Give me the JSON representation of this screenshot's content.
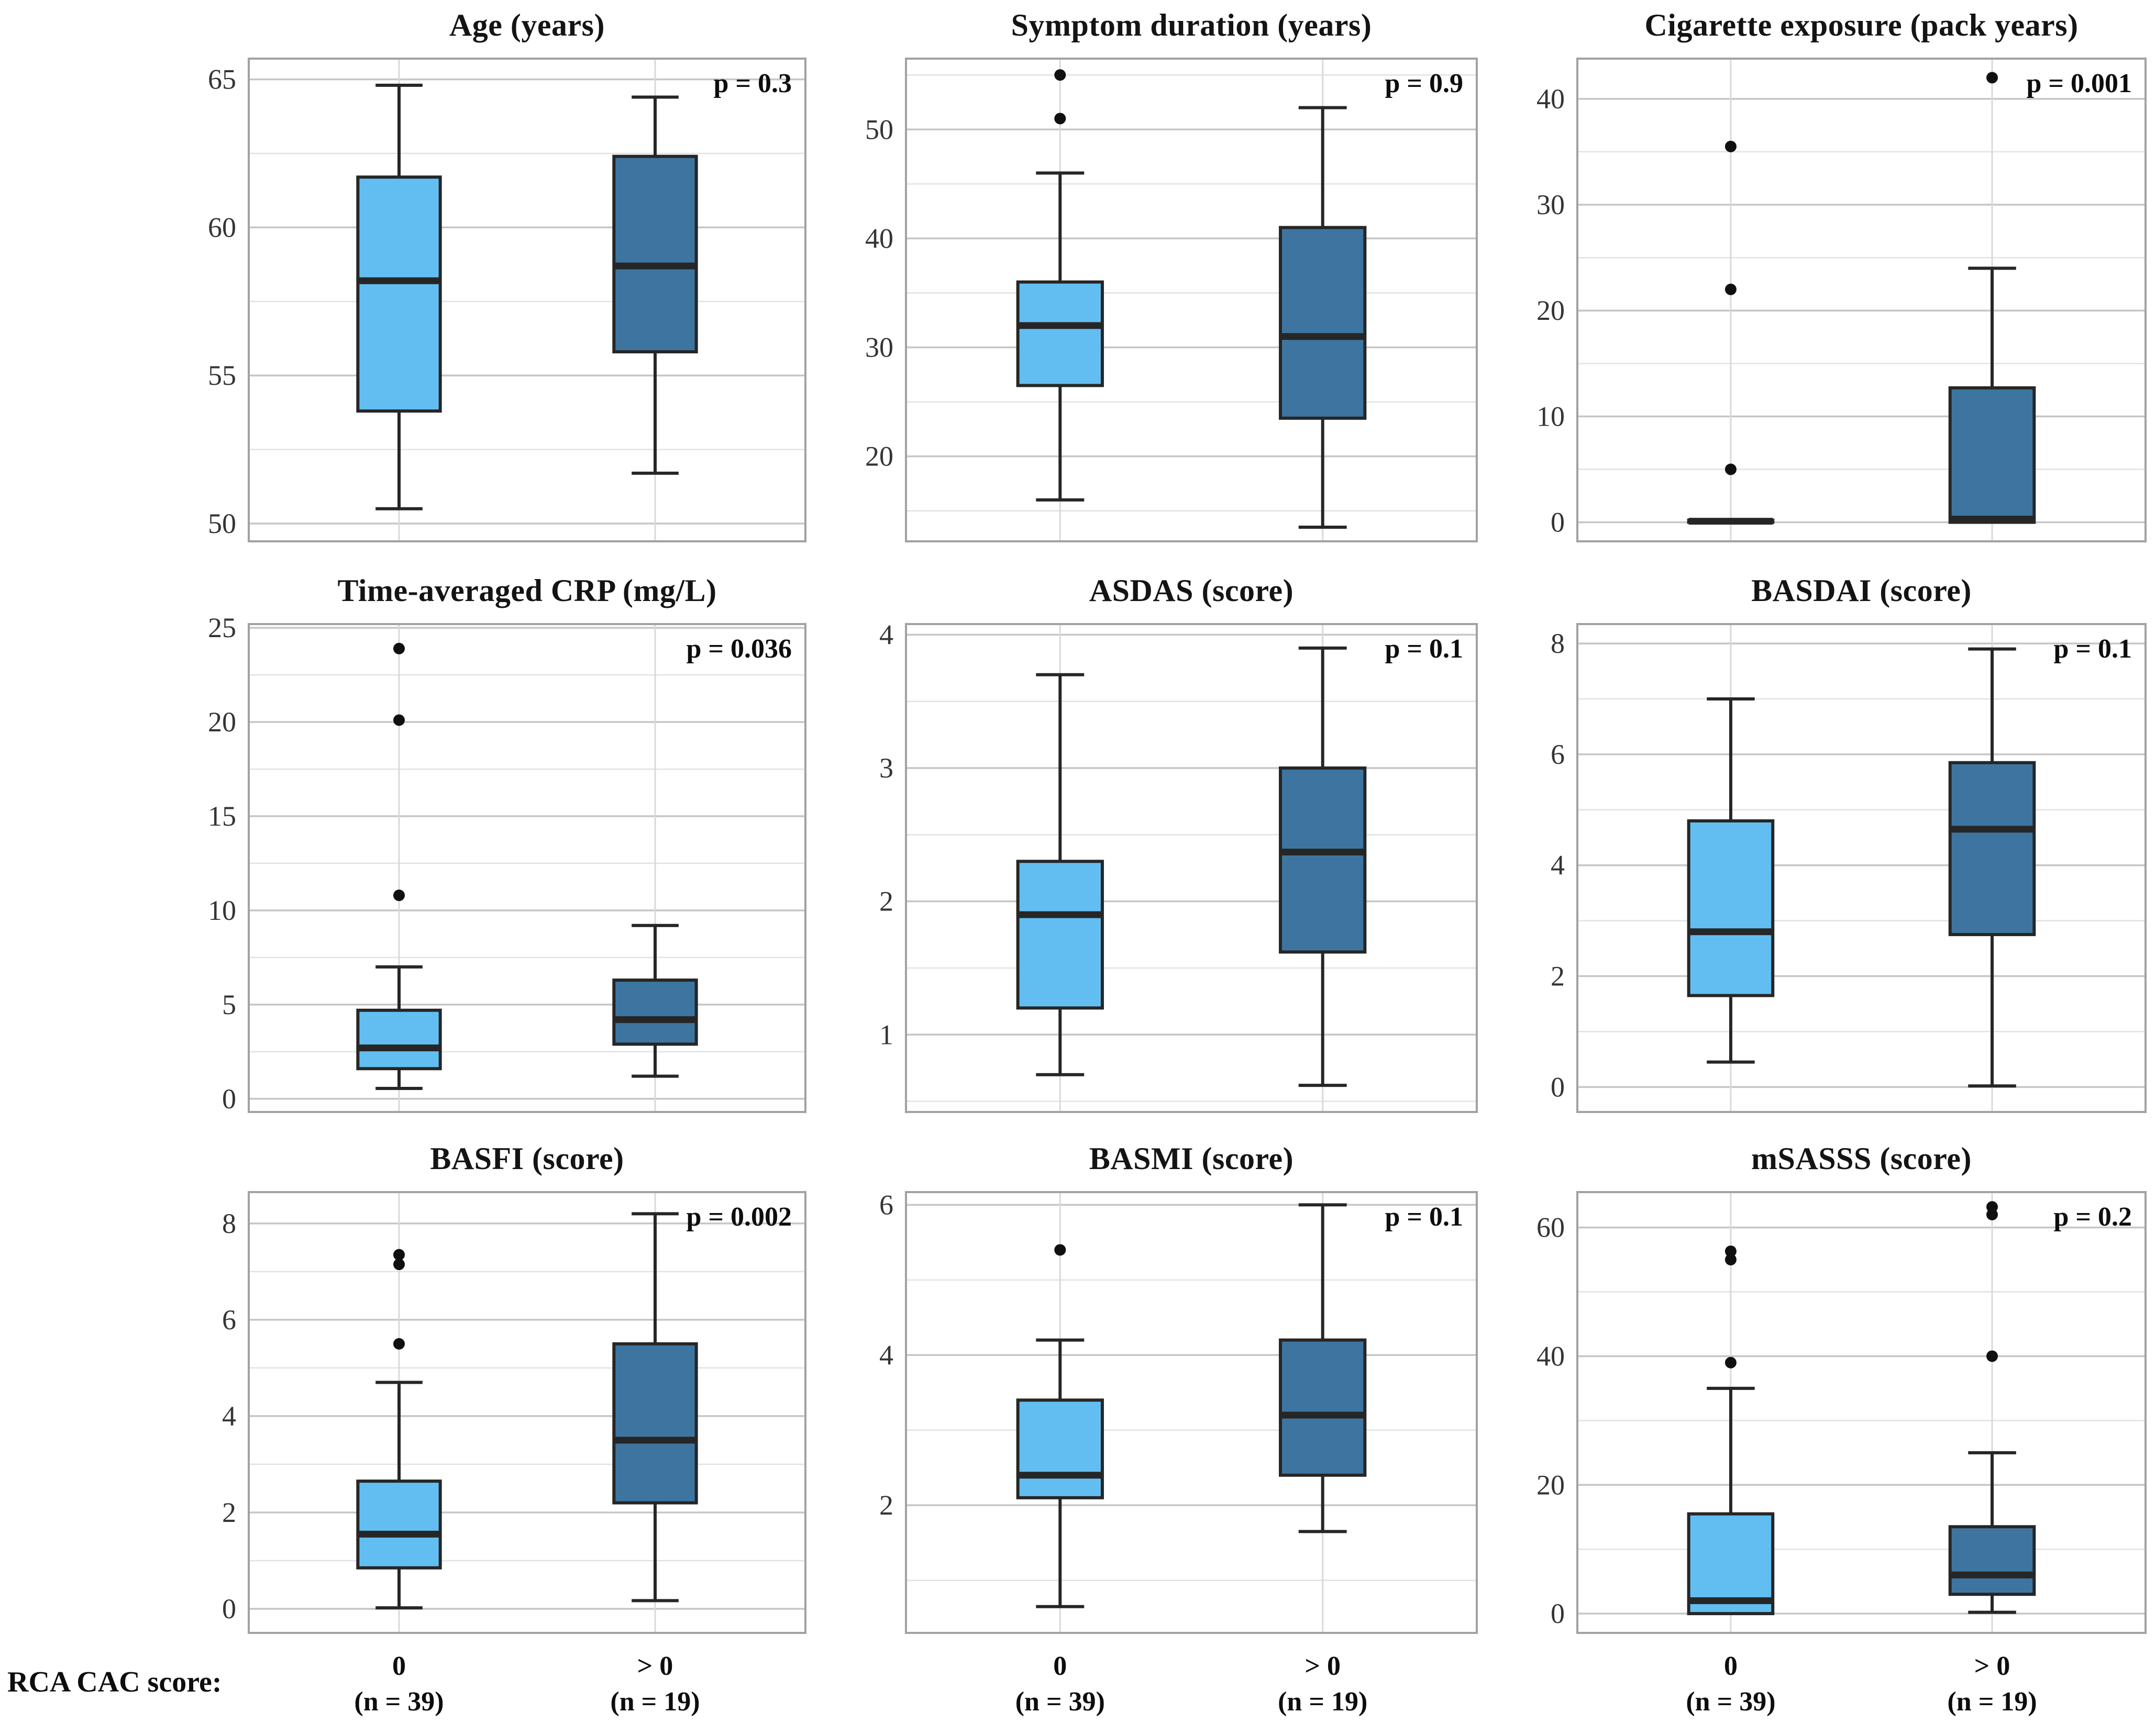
{
  "figure": {
    "x_axis_label": "RCA CAC score:",
    "groups": [
      {
        "label_line1": "0",
        "label_line2": "(n = 39)",
        "color": "#62BEF1"
      },
      {
        "label_line1": "> 0",
        "label_line2": "(n = 19)",
        "color": "#3D75A0"
      }
    ],
    "box_stroke_color": "#262626",
    "gridline_major_color": "#c6c6c6",
    "gridline_minor_color": "#e2e2e2",
    "panel_border_color": "#a2a2a2"
  },
  "chart_data": [
    {
      "type": "boxplot",
      "title": "Age (years)",
      "p_label": "p = 0.3",
      "ylim": [
        49.4,
        65.7
      ],
      "yticks": [
        50,
        55,
        60,
        65
      ],
      "yticks_minor": [
        52.5,
        57.5,
        62.5
      ],
      "groups": [
        {
          "name": "0 (n = 39)",
          "low": 50.5,
          "q1": 53.8,
          "median": 58.2,
          "q3": 61.7,
          "high": 64.8,
          "outliers": []
        },
        {
          "name": "> 0 (n = 19)",
          "low": 51.7,
          "q1": 55.8,
          "median": 58.7,
          "q3": 62.4,
          "high": 64.4,
          "outliers": []
        }
      ]
    },
    {
      "type": "boxplot",
      "title": "Symptom duration (years)",
      "p_label": "p = 0.9",
      "ylim": [
        12.2,
        56.5
      ],
      "yticks": [
        20,
        30,
        40,
        50
      ],
      "yticks_minor": [
        15,
        25,
        35,
        45,
        55
      ],
      "groups": [
        {
          "name": "0 (n = 39)",
          "low": 16,
          "q1": 26.5,
          "median": 32,
          "q3": 36,
          "high": 46,
          "outliers": [
            51,
            55
          ]
        },
        {
          "name": "> 0 (n = 19)",
          "low": 13.5,
          "q1": 23.5,
          "median": 31,
          "q3": 41,
          "high": 52,
          "outliers": []
        }
      ]
    },
    {
      "type": "boxplot",
      "title": "Cigarette exposure (pack years)",
      "p_label": "p = 0.001",
      "ylim": [
        -1.8,
        43.8
      ],
      "yticks": [
        0,
        10,
        20,
        30,
        40
      ],
      "yticks_minor": [
        5,
        15,
        25,
        35
      ],
      "groups": [
        {
          "name": "0 (n = 39)",
          "low": 0,
          "q1": 0,
          "median": 0.1,
          "q3": 0.2,
          "high": 0.2,
          "outliers": [
            5,
            22,
            35.5
          ]
        },
        {
          "name": "> 0 (n = 19)",
          "low": 0,
          "q1": 0,
          "median": 0.3,
          "q3": 12.7,
          "high": 24,
          "outliers": [
            42
          ]
        }
      ]
    },
    {
      "type": "boxplot",
      "title": "Time-averaged CRP (mg/L)",
      "p_label": "p = 0.036",
      "ylim": [
        -0.7,
        25.2
      ],
      "yticks": [
        0,
        5,
        10,
        15,
        20,
        25
      ],
      "yticks_minor": [
        2.5,
        7.5,
        12.5,
        17.5,
        22.5
      ],
      "groups": [
        {
          "name": "0 (n = 39)",
          "low": 0.55,
          "q1": 1.6,
          "median": 2.7,
          "q3": 4.7,
          "high": 7,
          "outliers": [
            10.8,
            20.1,
            23.9
          ]
        },
        {
          "name": "> 0 (n = 19)",
          "low": 1.2,
          "q1": 2.9,
          "median": 4.2,
          "q3": 6.3,
          "high": 9.2,
          "outliers": []
        }
      ]
    },
    {
      "type": "boxplot",
      "title": "ASDAS (score)",
      "p_label": "p = 0.1",
      "ylim": [
        0.42,
        4.08
      ],
      "yticks": [
        1,
        2,
        3,
        4
      ],
      "yticks_minor": [
        0.5,
        1.5,
        2.5,
        3.5
      ],
      "groups": [
        {
          "name": "0 (n = 39)",
          "low": 0.7,
          "q1": 1.2,
          "median": 1.9,
          "q3": 2.3,
          "high": 3.7,
          "outliers": []
        },
        {
          "name": "> 0 (n = 19)",
          "low": 0.62,
          "q1": 1.62,
          "median": 2.37,
          "q3": 3.0,
          "high": 3.9,
          "outliers": []
        }
      ]
    },
    {
      "type": "boxplot",
      "title": "BASDAI (score)",
      "p_label": "p = 0.1",
      "ylim": [
        -0.45,
        8.35
      ],
      "yticks": [
        0,
        2,
        4,
        6,
        8
      ],
      "yticks_minor": [
        1,
        3,
        5,
        7
      ],
      "groups": [
        {
          "name": "0 (n = 39)",
          "low": 0.45,
          "q1": 1.65,
          "median": 2.8,
          "q3": 4.8,
          "high": 7.0,
          "outliers": []
        },
        {
          "name": "> 0 (n = 19)",
          "low": 0.02,
          "q1": 2.75,
          "median": 4.65,
          "q3": 5.85,
          "high": 7.9,
          "outliers": []
        }
      ]
    },
    {
      "type": "boxplot",
      "title": "BASFI (score)",
      "p_label": "p = 0.002",
      "ylim": [
        -0.5,
        8.65
      ],
      "yticks": [
        0,
        2,
        4,
        6,
        8
      ],
      "yticks_minor": [
        1,
        3,
        5,
        7
      ],
      "groups": [
        {
          "name": "0 (n = 39)",
          "low": 0.02,
          "q1": 0.85,
          "median": 1.55,
          "q3": 2.65,
          "high": 4.7,
          "outliers": [
            5.5,
            7.15,
            7.35
          ]
        },
        {
          "name": "> 0 (n = 19)",
          "low": 0.17,
          "q1": 2.2,
          "median": 3.5,
          "q3": 5.5,
          "high": 8.2,
          "outliers": []
        }
      ]
    },
    {
      "type": "boxplot",
      "title": "BASMI (score)",
      "p_label": "p = 0.1",
      "ylim": [
        0.3,
        6.17
      ],
      "yticks": [
        2,
        4,
        6
      ],
      "yticks_minor": [
        1,
        3,
        5
      ],
      "groups": [
        {
          "name": "0 (n = 39)",
          "low": 0.65,
          "q1": 2.1,
          "median": 2.4,
          "q3": 3.4,
          "high": 4.2,
          "outliers": [
            5.4
          ]
        },
        {
          "name": "> 0 (n = 19)",
          "low": 1.65,
          "q1": 2.4,
          "median": 3.2,
          "q3": 4.2,
          "high": 6.0,
          "outliers": []
        }
      ]
    },
    {
      "type": "boxplot",
      "title": "mSASSS (score)",
      "p_label": "p = 0.2",
      "ylim": [
        -3,
        65.5
      ],
      "yticks": [
        0,
        20,
        40,
        60
      ],
      "yticks_minor": [
        10,
        30,
        50
      ],
      "groups": [
        {
          "name": "0 (n = 39)",
          "low": 0,
          "q1": 0,
          "median": 2,
          "q3": 15.5,
          "high": 35,
          "outliers": [
            39,
            55,
            56.3
          ]
        },
        {
          "name": "> 0 (n = 19)",
          "low": 0.2,
          "q1": 3,
          "median": 6,
          "q3": 13.5,
          "high": 25,
          "outliers": [
            40,
            62,
            63.2
          ]
        }
      ]
    }
  ]
}
